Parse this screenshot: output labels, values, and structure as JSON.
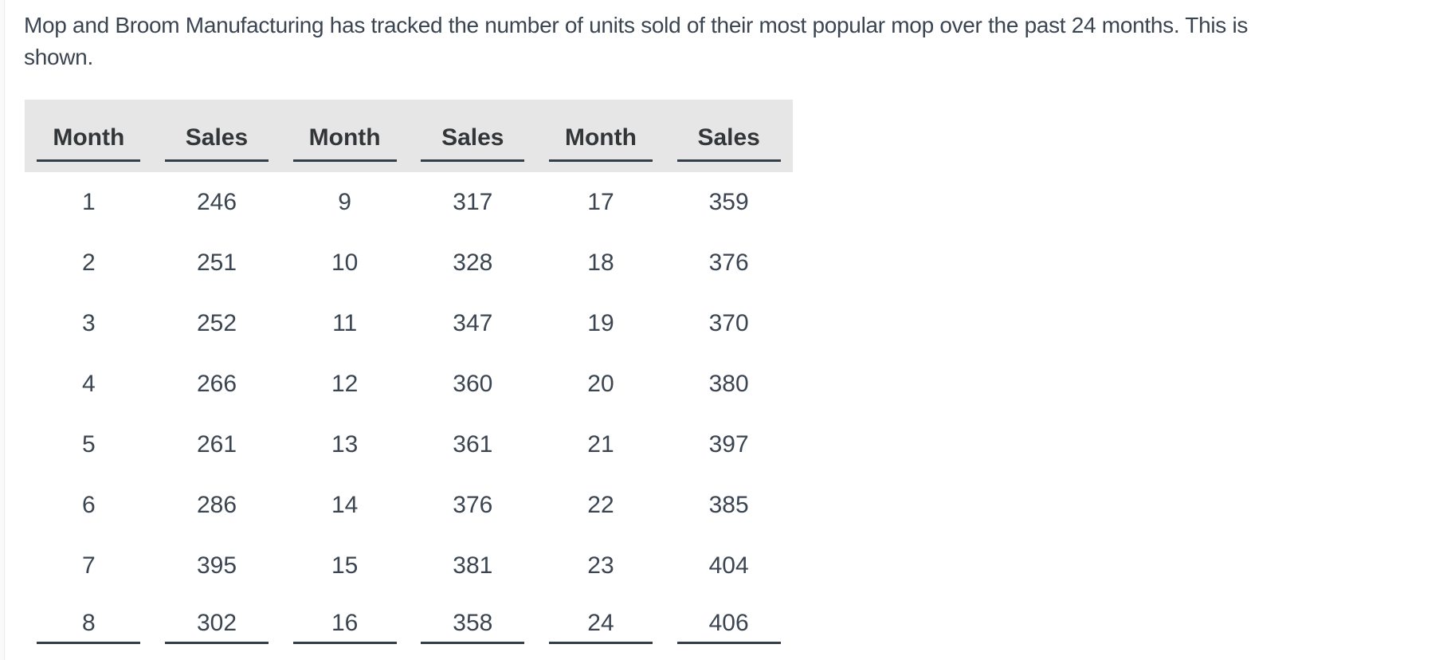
{
  "intro": {
    "text": "Mop and Broom Manufacturing has tracked the number of units sold of their most popular mop over the past 24 months. This is shown.",
    "lines": [
      "Mop and Broom Manufacturing has tracked the number of units sold of their most popular mop over the past 24 months. This is",
      "shown."
    ]
  },
  "sales_table": {
    "headers": [
      "Month",
      "Sales",
      "Month",
      "Sales",
      "Month",
      "Sales"
    ],
    "rows": [
      [
        "1",
        "246",
        "9",
        "317",
        "17",
        "359"
      ],
      [
        "2",
        "251",
        "10",
        "328",
        "18",
        "376"
      ],
      [
        "3",
        "252",
        "11",
        "347",
        "19",
        "370"
      ],
      [
        "4",
        "266",
        "12",
        "360",
        "20",
        "380"
      ],
      [
        "5",
        "261",
        "13",
        "361",
        "21",
        "397"
      ],
      [
        "6",
        "286",
        "14",
        "376",
        "22",
        "385"
      ],
      [
        "7",
        "395",
        "15",
        "381",
        "23",
        "404"
      ],
      [
        "8",
        "302",
        "16",
        "358",
        "24",
        "406"
      ]
    ]
  },
  "chart_data": {
    "type": "table",
    "title": "Units sold of most popular mop over past 24 months",
    "columns": [
      "Month",
      "Sales"
    ],
    "months": [
      1,
      2,
      3,
      4,
      5,
      6,
      7,
      8,
      9,
      10,
      11,
      12,
      13,
      14,
      15,
      16,
      17,
      18,
      19,
      20,
      21,
      22,
      23,
      24
    ],
    "sales": [
      246,
      251,
      252,
      266,
      261,
      286,
      395,
      302,
      317,
      328,
      347,
      360,
      361,
      376,
      381,
      358,
      359,
      376,
      370,
      380,
      397,
      385,
      404,
      406
    ]
  },
  "colors": {
    "text": "#3b4551",
    "header_text": "#333638",
    "header_background": "#e6e6e6",
    "rule": "#333e48",
    "page_background": "#ffffff"
  }
}
